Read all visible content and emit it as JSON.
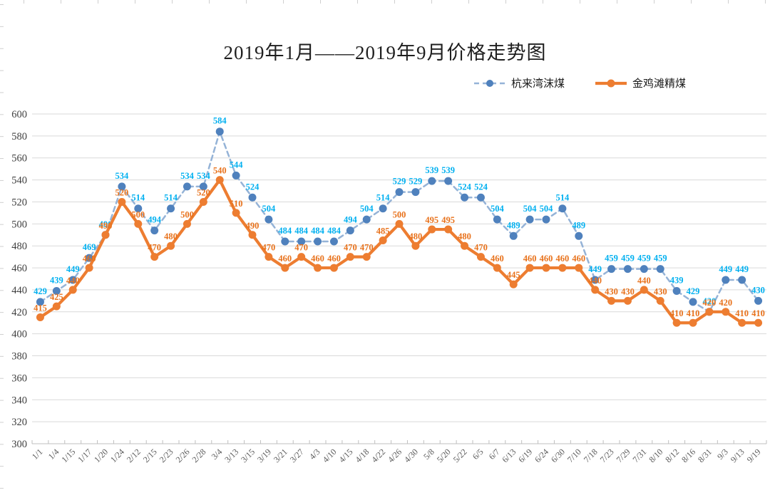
{
  "title": "2019年1月——2019年9月价格走势图",
  "legend": [
    {
      "label": "杭来湾沫煤"
    },
    {
      "label": "金鸡滩精煤"
    }
  ],
  "chart_data": {
    "type": "line",
    "title": "2019年1月——2019年9月价格走势图",
    "xlabel": "",
    "ylabel": "",
    "grid": true,
    "legend_position": "top-right",
    "ylim": [
      300,
      600
    ],
    "y_ticks": [
      600,
      580,
      560,
      540,
      520,
      500,
      480,
      460,
      440,
      420,
      400,
      380,
      360,
      340,
      320,
      300
    ],
    "categories": [
      "1/1",
      "1/4",
      "1/15",
      "1/17",
      "1/20",
      "1/24",
      "2/12",
      "2/15",
      "2/23",
      "2/26",
      "2/28",
      "3/4",
      "3/13",
      "3/15",
      "3/19",
      "3/21",
      "3/27",
      "4/3",
      "4/10",
      "4/15",
      "4/18",
      "4/22",
      "4/26",
      "4/30",
      "5/8",
      "5/20",
      "5/22",
      "6/5",
      "6/7",
      "6/13",
      "6/19",
      "6/24",
      "6/30",
      "7/10",
      "7/18",
      "7/23",
      "7/29",
      "7/31",
      "8/10",
      "8/12",
      "8/16",
      "8/31",
      "9/3",
      "9/13",
      "9/19"
    ],
    "series": [
      {
        "id": "hanglaiwan",
        "name": "杭来湾沫煤",
        "values": [
          429,
          439,
          449,
          469,
          490,
          534,
          514,
          494,
          514,
          534,
          534,
          584,
          544,
          524,
          504,
          484,
          484,
          484,
          484,
          494,
          504,
          514,
          529,
          529,
          539,
          539,
          524,
          524,
          504,
          489,
          504,
          504,
          514,
          489,
          449,
          459,
          459,
          459,
          459,
          439,
          429,
          420,
          449,
          449,
          430
        ],
        "line_color": "#95B3D7",
        "marker_color": "#4F81BD",
        "label_color": "#00B0F0",
        "line_style": "dashed",
        "dash": "7 5",
        "line_width": 2.5,
        "marker_radius": 5.5,
        "label_dy": 11
      },
      {
        "id": "jinjitan",
        "name": "金鸡滩精煤",
        "values": [
          415,
          425,
          440,
          460,
          490,
          520,
          500,
          470,
          480,
          500,
          520,
          540,
          510,
          490,
          470,
          460,
          470,
          460,
          460,
          470,
          470,
          485,
          500,
          480,
          495,
          495,
          480,
          470,
          460,
          445,
          460,
          460,
          460,
          460,
          440,
          430,
          430,
          440,
          430,
          410,
          410,
          420,
          420,
          410,
          410
        ],
        "line_color": "#ED7D31",
        "marker_color": "#ED7D31",
        "label_color": "#E8721C",
        "line_style": "solid",
        "dash": "",
        "line_width": 4.2,
        "marker_radius": 5.5,
        "label_dy": 9
      }
    ]
  },
  "axis_colors": {
    "grid": "#D9D9D9",
    "axis_line": "#BFBFBF",
    "y_label": "#3F3F3F",
    "x_label": "#595959",
    "ruler_tick": "#CFCFCF"
  }
}
